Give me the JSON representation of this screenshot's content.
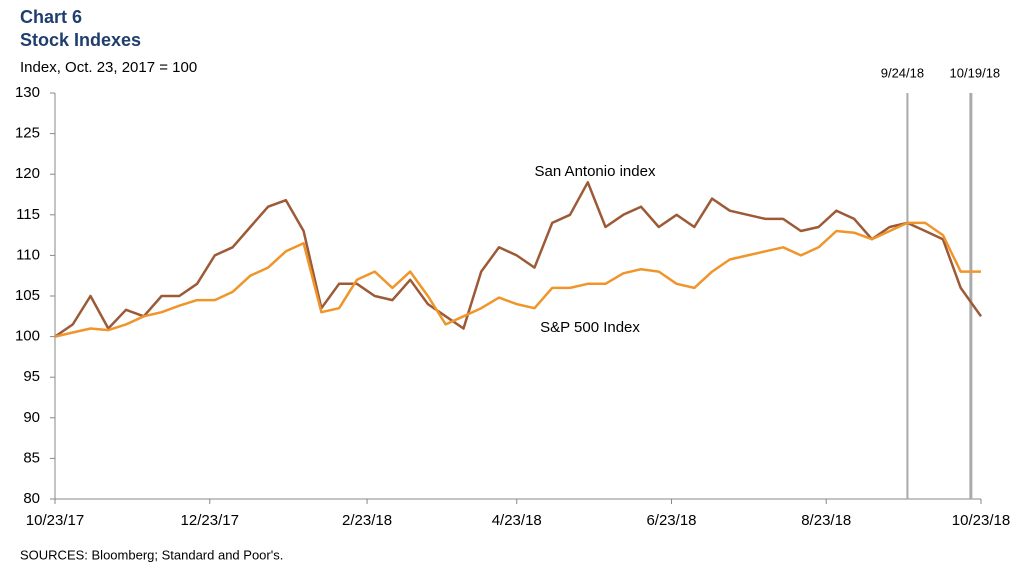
{
  "chart_data": {
    "type": "line",
    "title": "Chart 6",
    "subtitle": "Stock Indexes",
    "y_label": "Index, Oct. 23, 2017 = 100",
    "source": "SOURCES:  Bloomberg; Standard and Poor's.",
    "x": [
      "10/23/17",
      "10/30/17",
      "11/6/17",
      "11/13/17",
      "11/20/17",
      "11/27/17",
      "12/4/17",
      "12/11/17",
      "12/18/17",
      "12/25/17",
      "1/1/18",
      "1/8/18",
      "1/15/18",
      "1/22/18",
      "1/29/18",
      "2/5/18",
      "2/12/18",
      "2/19/18",
      "2/26/18",
      "3/5/18",
      "3/12/18",
      "3/19/18",
      "3/26/18",
      "4/2/18",
      "4/9/18",
      "4/16/18",
      "4/23/18",
      "4/30/18",
      "5/7/18",
      "5/14/18",
      "5/21/18",
      "5/28/18",
      "6/4/18",
      "6/11/18",
      "6/18/18",
      "6/25/18",
      "7/2/18",
      "7/9/18",
      "7/16/18",
      "7/23/18",
      "7/30/18",
      "8/6/18",
      "8/13/18",
      "8/20/18",
      "8/27/18",
      "9/3/18",
      "9/10/18",
      "9/17/18",
      "9/24/18",
      "10/1/18",
      "10/8/18",
      "10/15/18",
      "10/23/18"
    ],
    "series": [
      {
        "name": "San Antonio index",
        "color": "#9c5a36",
        "values": [
          100,
          101.5,
          105,
          101,
          103.3,
          102.5,
          105,
          105,
          106.5,
          110,
          111,
          113.5,
          116,
          116.8,
          113,
          103.5,
          106.5,
          106.5,
          105,
          104.5,
          107,
          104,
          102.5,
          101,
          108,
          111,
          110,
          108.5,
          114,
          115,
          119,
          113.5,
          115,
          116,
          113.5,
          115,
          113.5,
          117,
          115.5,
          115,
          114.5,
          114.5,
          113,
          113.5,
          115.5,
          114.5,
          112,
          113.5,
          114,
          113,
          112,
          106,
          102.5
        ]
      },
      {
        "name": "S&P 500 Index",
        "color": "#f0952b",
        "values": [
          100,
          100.5,
          101,
          100.8,
          101.5,
          102.5,
          103,
          103.8,
          104.5,
          104.5,
          105.5,
          107.5,
          108.5,
          110.5,
          111.5,
          103,
          103.5,
          107,
          108,
          106,
          108,
          105,
          101.5,
          102.5,
          103.5,
          104.8,
          104,
          103.5,
          106,
          106,
          106.5,
          106.5,
          107.8,
          108.3,
          108,
          106.5,
          106,
          108,
          109.5,
          110,
          110.5,
          111,
          110,
          111,
          113,
          112.8,
          112,
          113,
          114,
          114,
          112.5,
          108,
          108
        ]
      }
    ],
    "xlim": [
      "10/23/17",
      "10/23/18"
    ],
    "xticks": [
      "10/23/17",
      "12/23/17",
      "2/23/18",
      "4/23/18",
      "6/23/18",
      "8/23/18",
      "10/23/18"
    ],
    "ylim": [
      80,
      130
    ],
    "yticks": [
      80,
      85,
      90,
      95,
      100,
      105,
      110,
      115,
      120,
      125,
      130
    ],
    "vlines": [
      "9/24/18",
      "10/19/18"
    ]
  }
}
